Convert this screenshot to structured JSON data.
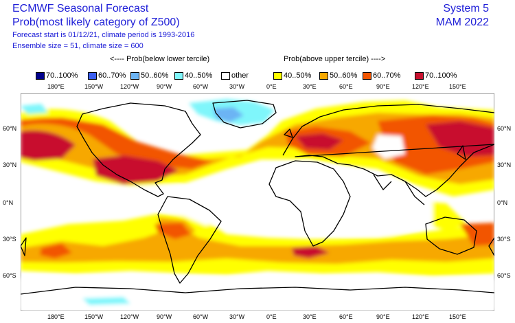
{
  "header": {
    "title": "ECMWF Seasonal Forecast",
    "subtitle": "Prob(most likely category of Z500)",
    "info_line1": "Forecast start is 01/12/21, climate period is 1993-2016",
    "info_line2": "Ensemble size = 51, climate size = 600",
    "system": "System 5",
    "period": "MAM 2022"
  },
  "legend": {
    "below_header": "<---- Prob(below lower tercile)",
    "above_header": "Prob(above upper tercile) ---->",
    "items": [
      {
        "label": "70..100%",
        "color": "#00008b"
      },
      {
        "label": "60..70%",
        "color": "#3a5ef0"
      },
      {
        "label": "50..60%",
        "color": "#6cb4f4"
      },
      {
        "label": "40..50%",
        "color": "#7ff6fb"
      },
      {
        "label": "other",
        "color": "#ffffff"
      },
      {
        "label": "40..50%",
        "color": "#ffff00"
      },
      {
        "label": "50..60%",
        "color": "#f7a800"
      },
      {
        "label": "60..70%",
        "color": "#f25500"
      },
      {
        "label": "70..100%",
        "color": "#c8102e"
      }
    ]
  },
  "axes": {
    "lon_labels": [
      "180°E",
      "150°W",
      "120°W",
      "90°W",
      "60°W",
      "30°W",
      "0°E",
      "30°E",
      "60°E",
      "90°E",
      "120°E",
      "150°E"
    ],
    "lat_labels": [
      "60°N",
      "30°N",
      "0°N",
      "30°S",
      "60°S"
    ]
  }
}
